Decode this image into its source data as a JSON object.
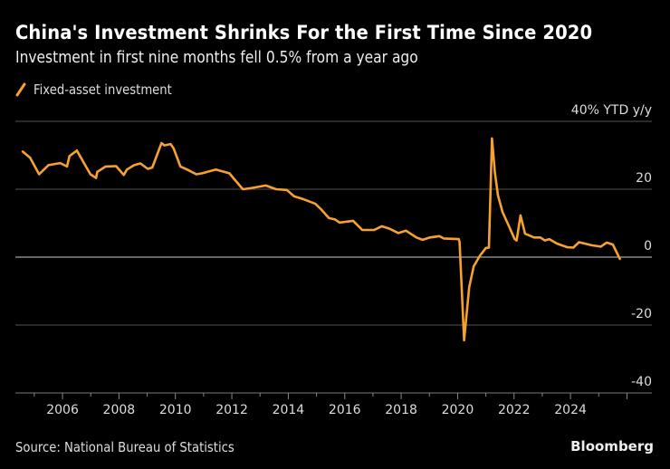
{
  "header": {
    "title": "China's Investment Shrinks For the First Time Since 2020",
    "subtitle": "Investment in first nine months fell 0.5% from a year ago"
  },
  "footer": {
    "source": "Source: National Bureau of Statistics",
    "brand": "Bloomberg"
  },
  "colors": {
    "background": "#000000",
    "series": "#f7a12f",
    "grid": "#555555",
    "zero_line": "#cccccc"
  },
  "chart_data": {
    "type": "line",
    "title": "China's Investment Shrinks For the First Time Since 2020",
    "subtitle": "Investment in first nine months fell 0.5% from a year ago",
    "ylabel": "40% YTD y/y",
    "ylim": [
      -40,
      40
    ],
    "xlim": [
      2004.33,
      2026.88
    ],
    "yticks": [
      {
        "value": 40,
        "label": "40% YTD y/y"
      },
      {
        "value": 20,
        "label": "20"
      },
      {
        "value": 0,
        "label": "0"
      },
      {
        "value": -20,
        "label": "-20"
      },
      {
        "value": -40,
        "label": "-40"
      }
    ],
    "xticks": [
      "2006",
      "2008",
      "2010",
      "2012",
      "2014",
      "2016",
      "2018",
      "2020",
      "2022",
      "2024"
    ],
    "grid": true,
    "legend_placement": "top-left",
    "series": [
      {
        "name": "Fixed-asset investment",
        "color": "#f7a12f",
        "points": [
          [
            2004.59,
            31.1
          ],
          [
            2004.85,
            29.3
          ],
          [
            2005.17,
            24.4
          ],
          [
            2005.5,
            27.1
          ],
          [
            2005.92,
            27.7
          ],
          [
            2006.16,
            26.7
          ],
          [
            2006.25,
            29.8
          ],
          [
            2006.51,
            31.4
          ],
          [
            2006.83,
            26.7
          ],
          [
            2006.99,
            24.4
          ],
          [
            2007.19,
            23.3
          ],
          [
            2007.23,
            25.1
          ],
          [
            2007.53,
            26.7
          ],
          [
            2007.9,
            26.8
          ],
          [
            2008.17,
            24.2
          ],
          [
            2008.28,
            25.8
          ],
          [
            2008.54,
            27.1
          ],
          [
            2008.76,
            27.6
          ],
          [
            2009.02,
            26.0
          ],
          [
            2009.18,
            26.4
          ],
          [
            2009.51,
            33.6
          ],
          [
            2009.61,
            32.9
          ],
          [
            2009.83,
            33.3
          ],
          [
            2009.94,
            32.0
          ],
          [
            2010.18,
            26.7
          ],
          [
            2010.42,
            25.8
          ],
          [
            2010.74,
            24.4
          ],
          [
            2010.95,
            24.7
          ],
          [
            2011.43,
            25.8
          ],
          [
            2011.91,
            24.7
          ],
          [
            2012.39,
            20.0
          ],
          [
            2012.66,
            20.3
          ],
          [
            2013.2,
            21.1
          ],
          [
            2013.57,
            20.0
          ],
          [
            2013.95,
            19.8
          ],
          [
            2014.21,
            17.9
          ],
          [
            2014.53,
            17.1
          ],
          [
            2014.96,
            15.7
          ],
          [
            2015.17,
            14.0
          ],
          [
            2015.44,
            11.5
          ],
          [
            2015.66,
            11.1
          ],
          [
            2015.82,
            10.2
          ],
          [
            2016.3,
            10.7
          ],
          [
            2016.62,
            8.0
          ],
          [
            2017.04,
            8.0
          ],
          [
            2017.31,
            9.1
          ],
          [
            2017.58,
            8.4
          ],
          [
            2017.9,
            7.1
          ],
          [
            2018.17,
            7.8
          ],
          [
            2018.54,
            5.8
          ],
          [
            2018.76,
            5.1
          ],
          [
            2019.02,
            5.8
          ],
          [
            2019.35,
            6.2
          ],
          [
            2019.51,
            5.5
          ],
          [
            2020.04,
            5.3
          ],
          [
            2020.07,
            4.4
          ],
          [
            2020.23,
            -24.5
          ],
          [
            2020.41,
            -8.9
          ],
          [
            2020.57,
            -2.7
          ],
          [
            2020.79,
            0.4
          ],
          [
            2021.0,
            2.7
          ],
          [
            2021.11,
            2.8
          ],
          [
            2021.22,
            35.0
          ],
          [
            2021.32,
            24.9
          ],
          [
            2021.43,
            18.2
          ],
          [
            2021.59,
            13.3
          ],
          [
            2021.81,
            9.3
          ],
          [
            2022.02,
            5.3
          ],
          [
            2022.09,
            4.9
          ],
          [
            2022.23,
            12.3
          ],
          [
            2022.39,
            6.9
          ],
          [
            2022.71,
            5.8
          ],
          [
            2022.93,
            5.8
          ],
          [
            2023.09,
            4.9
          ],
          [
            2023.25,
            5.3
          ],
          [
            2023.52,
            4.0
          ],
          [
            2023.89,
            2.9
          ],
          [
            2024.1,
            2.8
          ],
          [
            2024.3,
            4.4
          ],
          [
            2024.75,
            3.5
          ],
          [
            2025.07,
            3.1
          ],
          [
            2025.28,
            4.3
          ],
          [
            2025.5,
            3.7
          ],
          [
            2025.75,
            -0.5
          ]
        ]
      }
    ]
  }
}
